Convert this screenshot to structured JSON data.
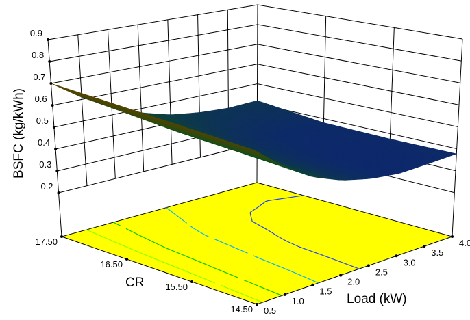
{
  "chart_data": {
    "type": "surface",
    "title": "",
    "x_axis": {
      "label": "Load (kW)",
      "ticks": [
        "0.5",
        "1.0",
        "1.5",
        "2.0",
        "2.5",
        "3.0",
        "3.5",
        "4.0"
      ],
      "range": [
        0.5,
        4.0
      ]
    },
    "y_axis": {
      "label": "CR",
      "ticks": [
        "17.50",
        "16.50",
        "15.50",
        "14.50"
      ],
      "range": [
        17.5,
        14.5
      ]
    },
    "z_axis": {
      "label": "BSFC (kg/kWh)",
      "ticks": [
        "0.2",
        "0.3",
        "0.4",
        "0.5",
        "0.6",
        "0.7",
        "0.8",
        "0.9"
      ],
      "range": [
        0.2,
        0.9
      ]
    },
    "load_values": [
      0.5,
      1.0,
      1.5,
      2.0,
      2.5,
      3.0,
      3.5,
      4.0
    ],
    "cr_values": [
      17.5,
      16.5,
      15.5,
      14.5
    ],
    "bsfc_grid": [
      [
        0.7,
        0.61,
        0.54,
        0.48,
        0.44,
        0.42,
        0.41,
        0.415
      ],
      [
        0.68,
        0.58,
        0.5,
        0.44,
        0.4,
        0.38,
        0.375,
        0.38
      ],
      [
        0.66,
        0.56,
        0.48,
        0.42,
        0.385,
        0.37,
        0.37,
        0.375
      ],
      [
        0.64,
        0.54,
        0.46,
        0.41,
        0.38,
        0.365,
        0.37,
        0.377
      ]
    ],
    "contour_levels": [
      0.39,
      0.45,
      0.55,
      0.62
    ],
    "contour_colors": [
      "#1f3fff",
      "#00b4ff",
      "#00c800",
      "#8cff00"
    ],
    "floor_color": "#ffff00",
    "surface_colormap": [
      "#2060ff",
      "#20c040",
      "#c8a000"
    ],
    "grid": true,
    "legend": "none"
  }
}
